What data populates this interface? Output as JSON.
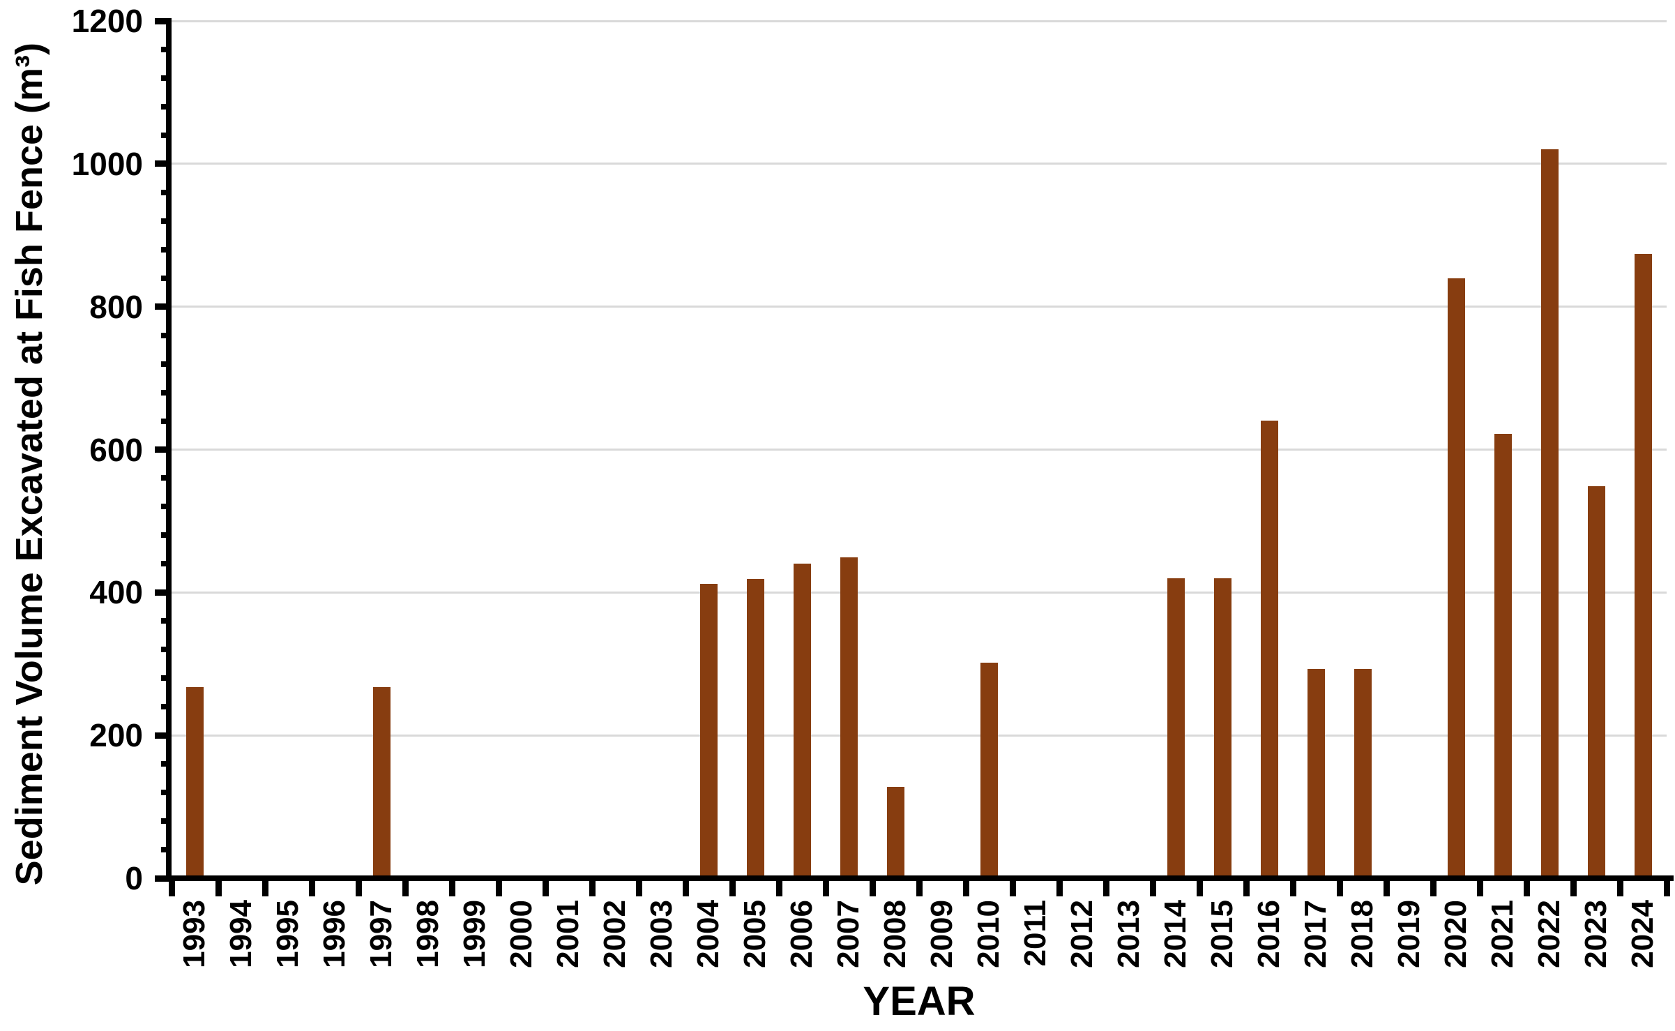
{
  "chart_data": {
    "type": "bar",
    "title": "",
    "xlabel": "YEAR",
    "ylabel": "Sediment Volume Excavated at Fish Fence (m³)",
    "categories": [
      "1993",
      "1994",
      "1995",
      "1996",
      "1997",
      "1998",
      "1999",
      "2000",
      "2001",
      "2002",
      "2003",
      "2004",
      "2005",
      "2006",
      "2007",
      "2008",
      "2009",
      "2010",
      "2011",
      "2012",
      "2013",
      "2014",
      "2015",
      "2016",
      "2017",
      "2018",
      "2019",
      "2020",
      "2021",
      "2022",
      "2023",
      "2024"
    ],
    "values": [
      268,
      0,
      0,
      0,
      268,
      0,
      0,
      0,
      0,
      0,
      0,
      412,
      419,
      440,
      449,
      128,
      0,
      302,
      0,
      0,
      0,
      420,
      420,
      641,
      293,
      293,
      0,
      840,
      622,
      1020,
      549,
      874
    ],
    "ylim": [
      0,
      1200
    ],
    "y_tick_labels": [
      "0",
      "200",
      "400",
      "600",
      "800",
      "1000",
      "1200"
    ],
    "y_major_tick_interval": 200,
    "y_minor_tick_interval": 40,
    "grid": true,
    "legend_position": "none",
    "bar_color": "#873D10",
    "gridline_color": "#D9D9D9",
    "axis_color": "#000000"
  }
}
